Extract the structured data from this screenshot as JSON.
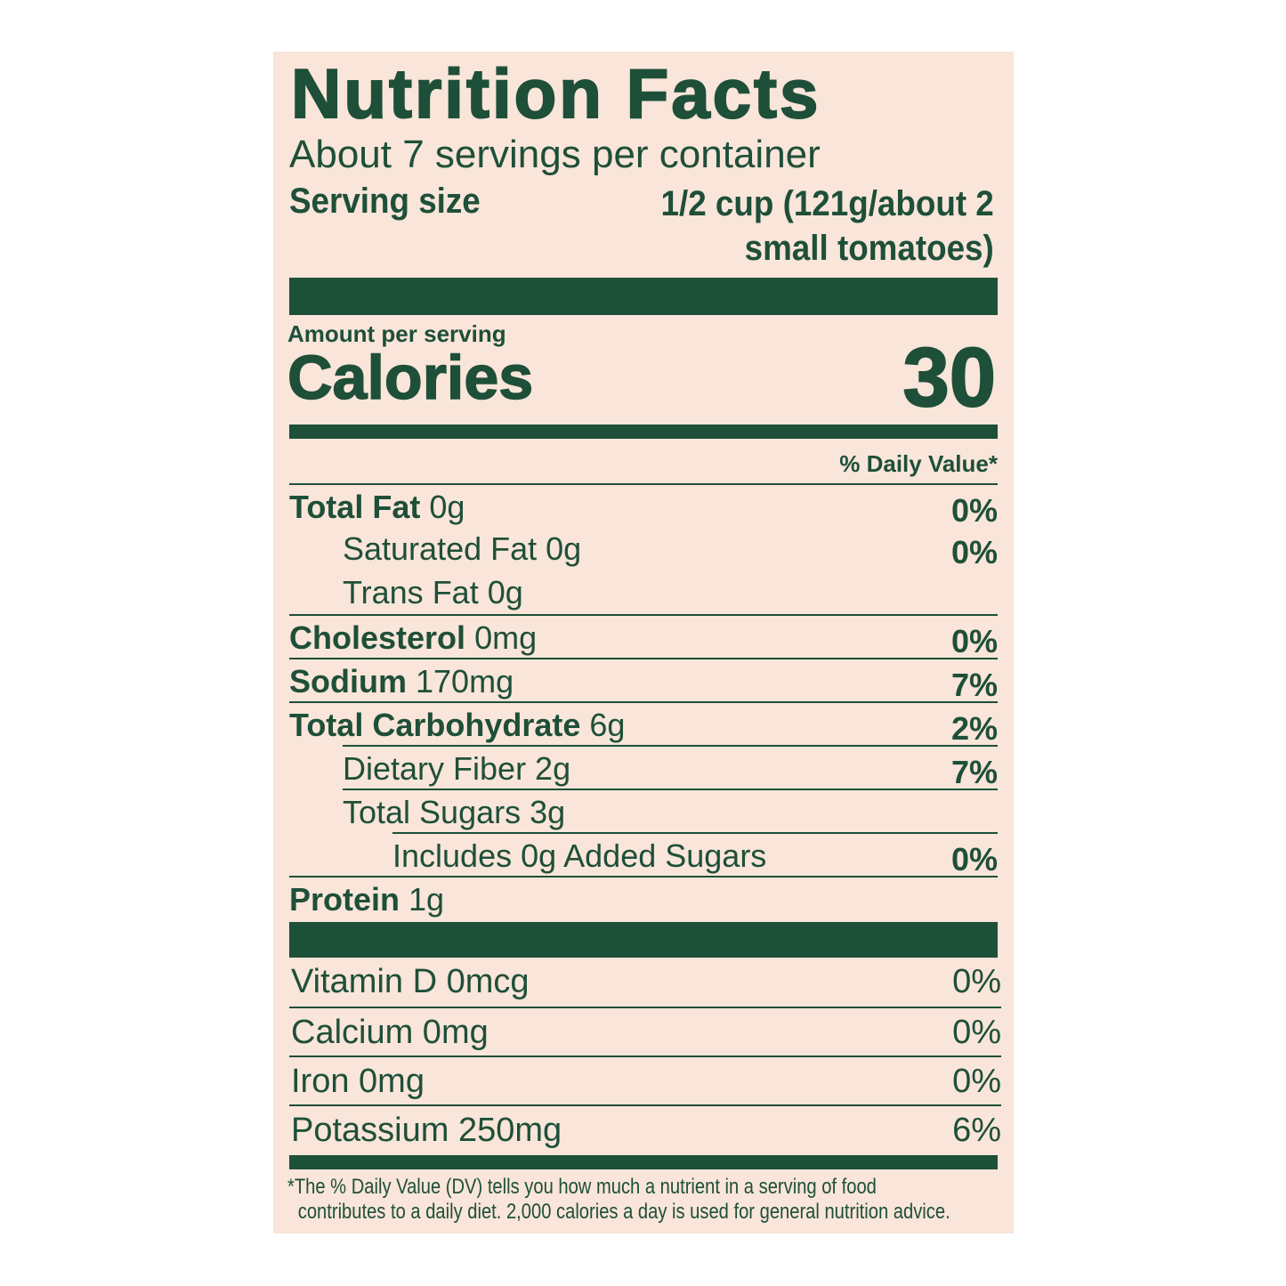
{
  "label": {
    "title": "Nutrition Facts",
    "servings_per_container": "About 7 servings per container",
    "serving_size_label": "Serving size",
    "serving_size_value_line1": "1/2 cup (121g/about 2",
    "serving_size_value_line2": "small tomatoes)",
    "amount_per_serving": "Amount per serving",
    "calories_label": "Calories",
    "calories_value": "30",
    "daily_value_header": "% Daily Value*",
    "nutrients": [
      {
        "name": "Total Fat",
        "amount": "0g",
        "dv": "0%"
      },
      {
        "name": "Saturated Fat 0g",
        "dv": "0%"
      },
      {
        "name": "Trans Fat 0g"
      },
      {
        "name": "Cholesterol",
        "amount": "0mg",
        "dv": "0%"
      },
      {
        "name": "Sodium",
        "amount": "170mg",
        "dv": "7%"
      },
      {
        "name": "Total Carbohydrate",
        "amount": "6g",
        "dv": "2%"
      },
      {
        "name": "Dietary Fiber 2g",
        "dv": "7%"
      },
      {
        "name": "Total Sugars 3g"
      },
      {
        "name": "Includes 0g Added Sugars",
        "dv": "0%"
      },
      {
        "name": "Protein",
        "amount": "1g"
      }
    ],
    "vitamins": [
      {
        "name": "Vitamin D 0mcg",
        "dv": "0%"
      },
      {
        "name": "Calcium 0mg",
        "dv": "0%"
      },
      {
        "name": "Iron 0mg",
        "dv": "0%"
      },
      {
        "name": "Potassium 250mg",
        "dv": "6%"
      }
    ],
    "footnote_line1": "*The % Daily Value (DV) tells you how much a nutrient in a serving of food",
    "footnote_line2": "contributes to a daily diet. 2,000 calories a day is used for general nutrition advice.",
    "colors": {
      "ink": "#1e4f39",
      "background": "#f9e5d9"
    }
  }
}
